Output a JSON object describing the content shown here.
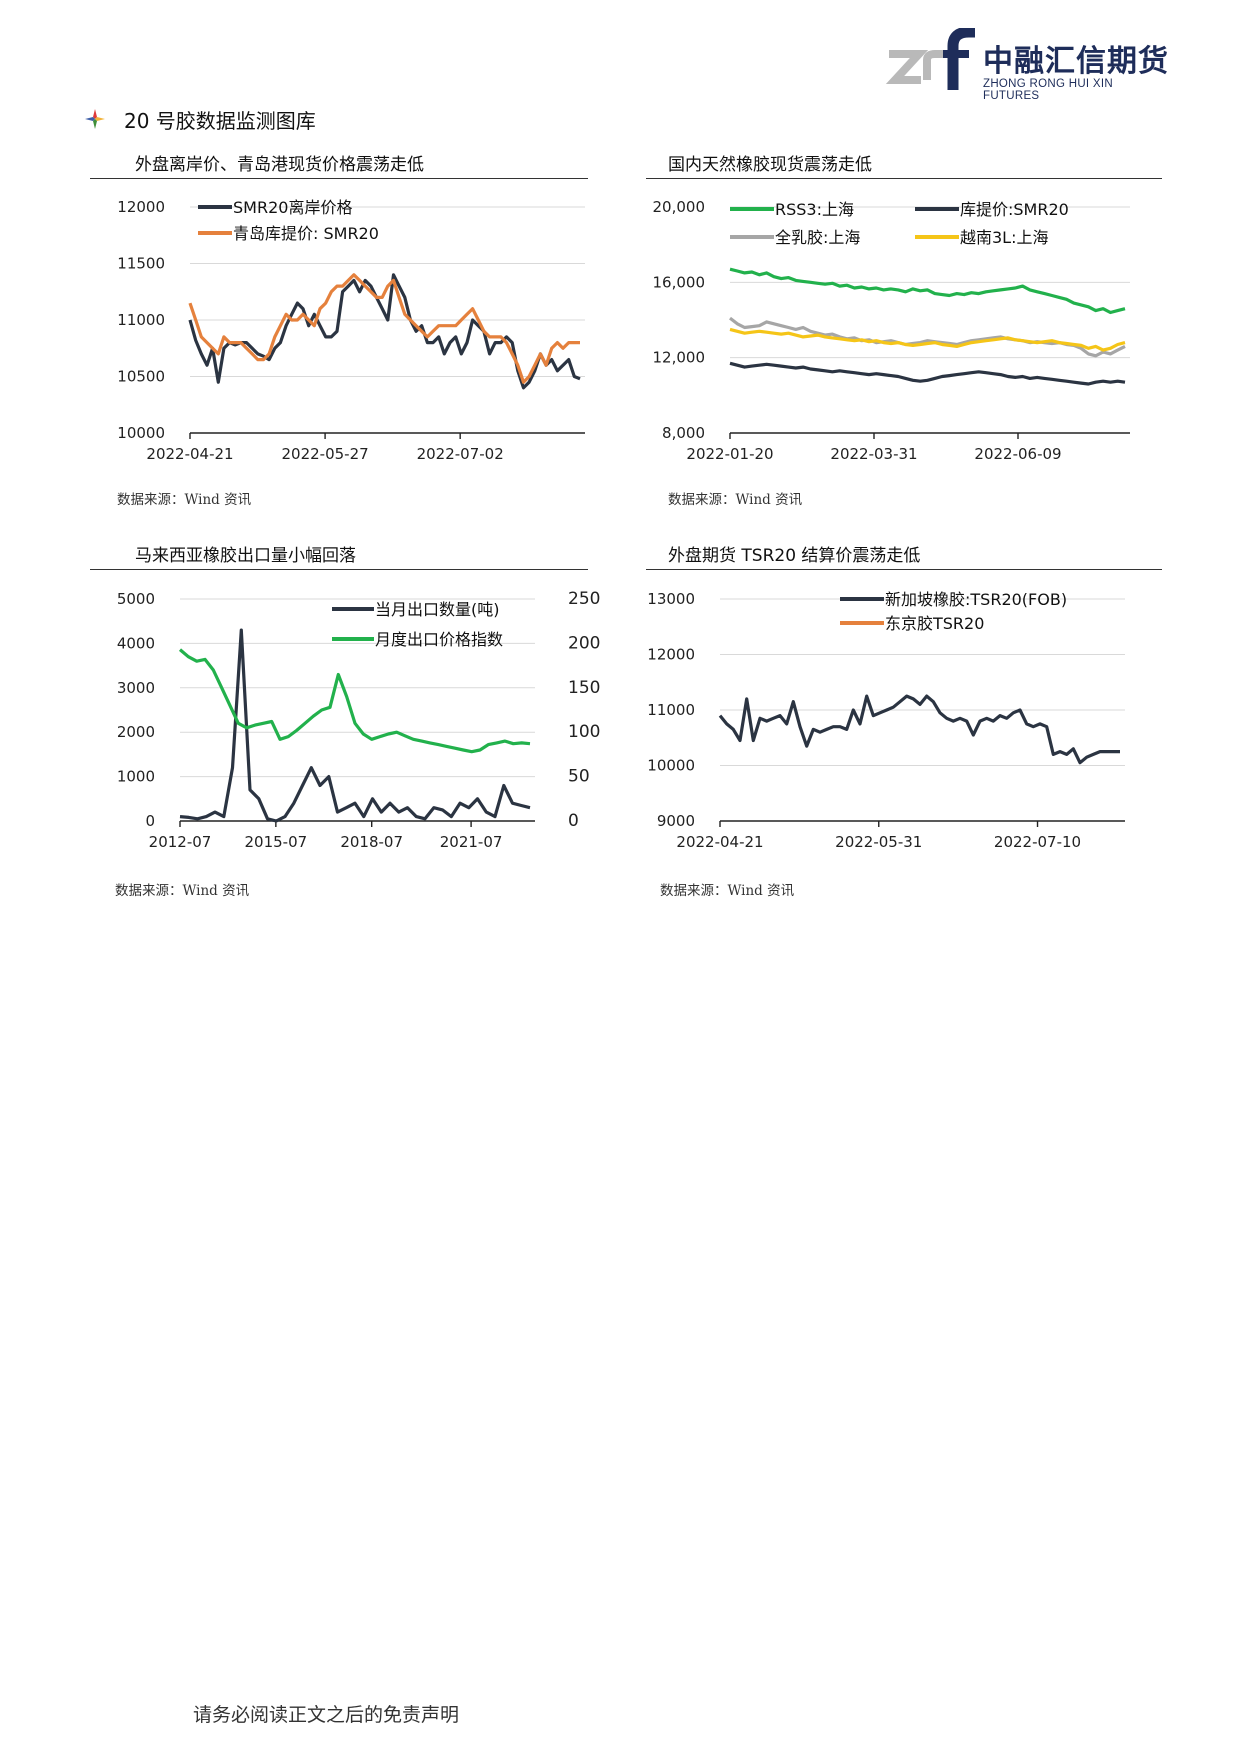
{
  "brand": {
    "name_cn": "中融汇信期货",
    "name_en": "ZHONG RONG HUI XIN FUTURES",
    "colors": {
      "blue": "#1e2d5a",
      "grey": "#b9b9b9"
    }
  },
  "section": {
    "title": "20 号胶数据监测图库",
    "icon": "diamond-bullet-icon"
  },
  "footer": {
    "text": "请务必阅读正文之后的免责声明"
  },
  "charts": [
    {
      "title": "外盘离岸价、青岛港现货价格震荡走低",
      "source": "数据来源：Wind 资讯"
    },
    {
      "title": "国内天然橡胶现货震荡走低",
      "source": "数据来源：Wind 资讯"
    },
    {
      "title": "马来西亚橡胶出口量小幅回落",
      "source": "数据来源：Wind 资讯"
    },
    {
      "title": "外盘期货 TSR20 结算价震荡走低",
      "source": "数据来源：Wind 资讯"
    }
  ],
  "chart_data": [
    {
      "type": "line",
      "title": "外盘离岸价、青岛港现货价格震荡走低",
      "x_ticks": [
        "2022-04-21",
        "2022-05-27",
        "2022-07-02"
      ],
      "ylim": [
        10000,
        12000
      ],
      "y_ticks": [
        "12000",
        "11500",
        "11000",
        "10500",
        "10000"
      ],
      "grid": true,
      "legend": "top-left",
      "series": [
        {
          "name": "SMR20离岸价格",
          "color": "#2b3442",
          "values": [
            11000,
            10820,
            10700,
            10600,
            10750,
            10450,
            10750,
            10800,
            10780,
            10800,
            10800,
            10750,
            10700,
            10680,
            10650,
            10750,
            10800,
            10950,
            11050,
            11150,
            11100,
            10950,
            11050,
            10950,
            10850,
            10850,
            10900,
            11250,
            11300,
            11350,
            11250,
            11350,
            11300,
            11200,
            11100,
            11000,
            11400,
            11300,
            11200,
            11000,
            10900,
            10950,
            10800,
            10800,
            10850,
            10700,
            10800,
            10850,
            10700,
            10800,
            11000,
            10950,
            10900,
            10700,
            10800,
            10800,
            10850,
            10800,
            10550,
            10400,
            10450,
            10550,
            10700,
            10600,
            10650,
            10550,
            10600,
            10650,
            10500,
            10480
          ]
        },
        {
          "name": "青岛库提价: SMR20",
          "color": "#e5813d",
          "values": [
            11150,
            11000,
            10850,
            10800,
            10750,
            10700,
            10850,
            10800,
            10800,
            10800,
            10750,
            10700,
            10650,
            10650,
            10700,
            10850,
            10950,
            11050,
            11000,
            11000,
            11050,
            11000,
            10950,
            11100,
            11150,
            11250,
            11300,
            11300,
            11350,
            11400,
            11350,
            11300,
            11250,
            11200,
            11200,
            11300,
            11350,
            11200,
            11050,
            11000,
            10950,
            10900,
            10850,
            10900,
            10950,
            10950,
            10950,
            10950,
            11000,
            11050,
            11100,
            11000,
            10900,
            10850,
            10850,
            10850,
            10800,
            10700,
            10600,
            10450,
            10500,
            10600,
            10700,
            10600,
            10750,
            10800,
            10750,
            10800,
            10800,
            10800
          ]
        }
      ]
    },
    {
      "type": "line",
      "title": "国内天然橡胶现货震荡走低",
      "x_ticks": [
        "2022-01-20",
        "2022-03-31",
        "2022-06-09"
      ],
      "ylim": [
        8000,
        20000
      ],
      "y_ticks": [
        "20,000",
        "16,000",
        "12,000",
        "8,000"
      ],
      "grid": true,
      "legend": "top",
      "series": [
        {
          "name": "RSS3:上海",
          "color": "#22b14c",
          "values": [
            16700,
            16600,
            16500,
            16550,
            16400,
            16500,
            16300,
            16200,
            16250,
            16100,
            16050,
            16000,
            15950,
            15900,
            15950,
            15800,
            15850,
            15700,
            15750,
            15650,
            15700,
            15600,
            15650,
            15600,
            15500,
            15650,
            15550,
            15600,
            15400,
            15350,
            15300,
            15400,
            15350,
            15450,
            15400,
            15500,
            15550,
            15600,
            15650,
            15700,
            15800,
            15600,
            15500,
            15400,
            15300,
            15200,
            15100,
            14900,
            14800,
            14700,
            14500,
            14600,
            14400,
            14500,
            14600
          ]
        },
        {
          "name": "库提价:SMR20",
          "color": "#2b3442",
          "values": [
            11700,
            11600,
            11500,
            11550,
            11600,
            11650,
            11600,
            11550,
            11500,
            11450,
            11500,
            11400,
            11350,
            11300,
            11250,
            11300,
            11250,
            11200,
            11150,
            11100,
            11150,
            11100,
            11050,
            11000,
            10900,
            10800,
            10750,
            10800,
            10900,
            11000,
            11050,
            11100,
            11150,
            11200,
            11250,
            11200,
            11150,
            11100,
            11000,
            10950,
            11000,
            10900,
            10950,
            10900,
            10850,
            10800,
            10750,
            10700,
            10650,
            10600,
            10700,
            10750,
            10700,
            10750,
            10700
          ]
        },
        {
          "name": "全乳胶:上海",
          "color": "#a6a6a6",
          "values": [
            14100,
            13800,
            13600,
            13650,
            13700,
            13900,
            13800,
            13700,
            13600,
            13500,
            13600,
            13400,
            13300,
            13200,
            13250,
            13100,
            13000,
            13050,
            12900,
            12950,
            12800,
            12850,
            12900,
            12800,
            12700,
            12750,
            12800,
            12900,
            12850,
            12800,
            12750,
            12700,
            12800,
            12900,
            12950,
            13000,
            13050,
            13100,
            13000,
            12950,
            12900,
            12800,
            12850,
            12800,
            12750,
            12800,
            12700,
            12650,
            12500,
            12200,
            12100,
            12300,
            12200,
            12400,
            12600
          ]
        },
        {
          "name": "越南3L:上海",
          "color": "#f5c518",
          "values": [
            13500,
            13400,
            13300,
            13350,
            13400,
            13350,
            13300,
            13250,
            13300,
            13200,
            13100,
            13150,
            13200,
            13100,
            13050,
            13000,
            12950,
            12900,
            12950,
            12850,
            12900,
            12800,
            12750,
            12800,
            12700,
            12650,
            12700,
            12750,
            12800,
            12700,
            12650,
            12600,
            12700,
            12800,
            12850,
            12900,
            12950,
            13000,
            13050,
            12950,
            12900,
            12850,
            12800,
            12850,
            12900,
            12800,
            12750,
            12700,
            12650,
            12500,
            12600,
            12400,
            12500,
            12700,
            12800
          ]
        }
      ]
    },
    {
      "type": "line",
      "title": "马来西亚橡胶出口量小幅回落",
      "x_ticks": [
        "2012-07",
        "2015-07",
        "2018-07",
        "2021-07"
      ],
      "ylim": [
        0,
        5000
      ],
      "y2lim": [
        0,
        250
      ],
      "y_ticks": [
        "5000",
        "4000",
        "3000",
        "2000",
        "1000",
        "0"
      ],
      "y2_ticks": [
        "250",
        "200",
        "150",
        "100",
        "50",
        "0"
      ],
      "grid": true,
      "legend": "top-right",
      "series": [
        {
          "name": "当月出口数量(吨)",
          "color": "#2b3442",
          "axis": "left",
          "values": [
            100,
            80,
            50,
            100,
            200,
            100,
            1200,
            4300,
            700,
            500,
            50,
            0,
            100,
            400,
            800,
            1200,
            800,
            1000,
            200,
            300,
            400,
            100,
            500,
            200,
            400,
            200,
            300,
            100,
            50,
            300,
            250,
            100,
            400,
            300,
            500,
            200,
            100,
            800,
            400,
            350,
            300
          ]
        },
        {
          "name": "月度出口价格指数",
          "color": "#22b14c",
          "axis": "right",
          "values": [
            193,
            185,
            180,
            182,
            170,
            150,
            130,
            110,
            105,
            108,
            110,
            112,
            92,
            95,
            102,
            110,
            118,
            125,
            128,
            165,
            140,
            110,
            98,
            92,
            95,
            98,
            100,
            96,
            92,
            90,
            88,
            86,
            84,
            82,
            80,
            78,
            80,
            86,
            88,
            90,
            87,
            88,
            87
          ]
        }
      ]
    },
    {
      "type": "line",
      "title": "外盘期货 TSR20 结算价震荡走低",
      "x_ticks": [
        "2022-04-21",
        "2022-05-31",
        "2022-07-10"
      ],
      "ylim": [
        9000,
        13000
      ],
      "y_ticks": [
        "13000",
        "12000",
        "11000",
        "10000",
        "9000"
      ],
      "grid": true,
      "legend": "top-center",
      "series": [
        {
          "name": "新加坡橡胶:TSR20(FOB)",
          "color": "#2b3442",
          "values": [
            10900,
            10750,
            10650,
            10450,
            11200,
            10450,
            10850,
            10800,
            10850,
            10900,
            10750,
            11150,
            10700,
            10350,
            10650,
            10600,
            10650,
            10700,
            10700,
            10650,
            11000,
            10750,
            11250,
            10900,
            10950,
            11000,
            11050,
            11150,
            11250,
            11200,
            11100,
            11250,
            11150,
            10950,
            10850,
            10800,
            10850,
            10800,
            10550,
            10800,
            10850,
            10800,
            10900,
            10850,
            10950,
            11000,
            10750,
            10700,
            10750,
            10700,
            10200,
            10250,
            10200,
            10300,
            10050,
            10150,
            10200,
            10250,
            10250,
            10250,
            10250
          ]
        },
        {
          "name": "东京胶TSR20",
          "color": "#e5813d",
          "values": []
        }
      ]
    }
  ]
}
